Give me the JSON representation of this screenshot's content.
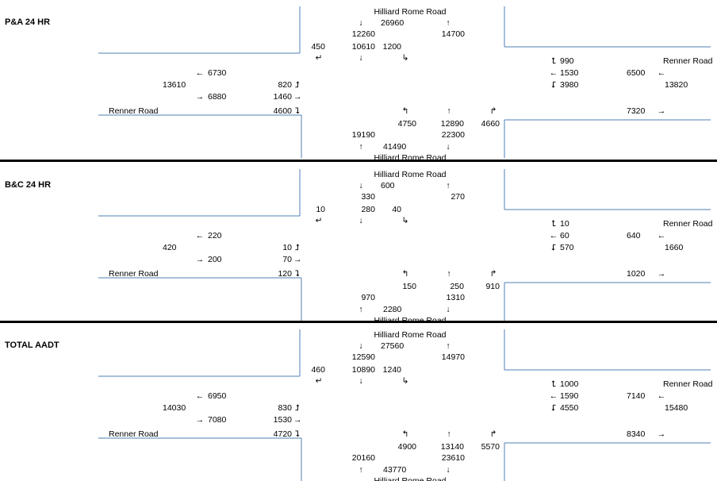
{
  "panels": [
    {
      "label": "P&A 24 HR",
      "north_road": "Hilliard Rome Road",
      "south_road": "Hilliard Rome Road",
      "west_road": "Renner Road",
      "east_road": "Renner Road",
      "north": {
        "sb_total": "26960",
        "nb_total": "14700",
        "approach": "12260",
        "right": "450",
        "thru": "10610",
        "left": "1200"
      },
      "south": {
        "left": "4750",
        "thru": "12890",
        "right": "4660",
        "approach": "19190",
        "exit": "22300",
        "nb_total": "41490"
      },
      "west": {
        "wb_exit": "6730",
        "two_way": "13610",
        "eb_entry": "6880",
        "left": "820",
        "thru": "1460",
        "right": "4600"
      },
      "east": {
        "right": "990",
        "thru": "1530",
        "left": "3980",
        "wb_entry": "6500",
        "two_way": "13820",
        "eb_exit": "7320"
      }
    },
    {
      "label": "B&C 24 HR",
      "north_road": "Hilliard Rome Road",
      "south_road": "Hilliard Rome Road",
      "west_road": "Renner Road",
      "east_road": "Renner Road",
      "north": {
        "sb_total": "600",
        "nb_total": "270",
        "approach": "330",
        "right": "10",
        "thru": "280",
        "left": "40"
      },
      "south": {
        "left": "150",
        "thru": "250",
        "right": "910",
        "approach": "970",
        "exit": "1310",
        "nb_total": "2280"
      },
      "west": {
        "wb_exit": "220",
        "two_way": "420",
        "eb_entry": "200",
        "left": "10",
        "thru": "70",
        "right": "120"
      },
      "east": {
        "right": "10",
        "thru": "60",
        "left": "570",
        "wb_entry": "640",
        "two_way": "1660",
        "eb_exit": "1020"
      }
    },
    {
      "label": "TOTAL AADT",
      "north_road": "Hilliard Rome Road",
      "south_road": "Hilliard Rome Road",
      "west_road": "Renner Road",
      "east_road": "Renner Road",
      "north": {
        "sb_total": "27560",
        "nb_total": "14970",
        "approach": "12590",
        "right": "460",
        "thru": "10890",
        "left": "1240"
      },
      "south": {
        "left": "4900",
        "thru": "13140",
        "right": "5570",
        "approach": "20160",
        "exit": "23610",
        "nb_total": "43770"
      },
      "west": {
        "wb_exit": "6950",
        "two_way": "14030",
        "eb_entry": "7080",
        "left": "830",
        "thru": "1530",
        "right": "4720"
      },
      "east": {
        "right": "1000",
        "thru": "1590",
        "left": "4550",
        "wb_entry": "7140",
        "two_way": "15480",
        "eb_exit": "8340"
      }
    }
  ],
  "arrows": {
    "down": "↓",
    "up": "↑",
    "left": "←",
    "right": "→",
    "sb_right": "↵",
    "sb_left": "↳",
    "nb_left": "↰",
    "nb_right": "↱",
    "eb_left": "⮥",
    "eb_right": "⮧",
    "wb_right": "⮤",
    "wb_left": "⮦"
  }
}
